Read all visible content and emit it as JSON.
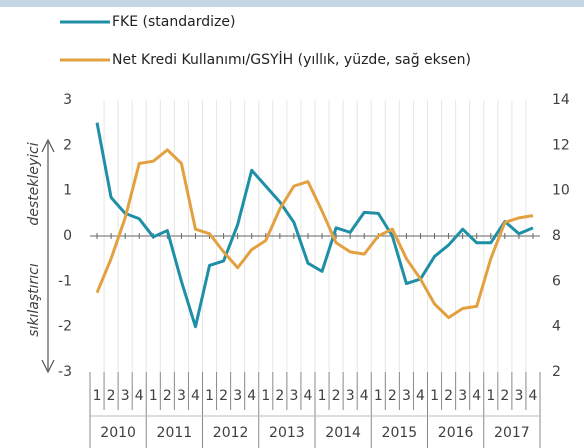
{
  "chart_data": {
    "type": "line",
    "annotations": [
      "destekleyici",
      "sıkılaştırıcı"
    ],
    "categories": [
      "1",
      "2",
      "3",
      "4",
      "1",
      "2",
      "3",
      "4",
      "1",
      "2",
      "3",
      "4",
      "1",
      "2",
      "3",
      "4",
      "1",
      "2",
      "3",
      "4",
      "1",
      "2",
      "3",
      "4",
      "1",
      "2",
      "3",
      "4",
      "1",
      "2",
      "3",
      "4"
    ],
    "groups": [
      "2010",
      "2011",
      "2012",
      "2013",
      "2014",
      "2015",
      "2016",
      "2017"
    ],
    "series": [
      {
        "name": "FKE (standardize)",
        "color": "#1e8fa6",
        "values": [
          2.5,
          0.85,
          0.5,
          0.38,
          -0.02,
          0.12,
          -1.0,
          -2.0,
          -0.65,
          -0.55,
          0.25,
          1.45,
          1.1,
          0.75,
          0.3,
          -0.6,
          -0.78,
          0.18,
          0.08,
          0.52,
          0.5,
          0.0,
          -1.05,
          -0.95,
          -0.45,
          -0.2,
          0.15,
          -0.15,
          -0.15,
          0.32,
          0.05,
          0.18
        ]
      },
      {
        "name": "Net Kredi Kullanımı/GSYİH (yıllık, yüzde, sağ eksen)",
        "color": "#e3a040",
        "axis": "y2",
        "values": [
          5.5,
          7.0,
          8.8,
          11.2,
          11.3,
          11.8,
          11.2,
          8.3,
          8.1,
          7.3,
          6.6,
          7.4,
          7.8,
          9.2,
          10.2,
          10.4,
          9.1,
          7.7,
          7.3,
          7.2,
          8.0,
          8.3,
          7.0,
          6.1,
          5.0,
          4.4,
          4.8,
          4.9,
          7.0,
          8.6,
          8.8,
          8.9
        ]
      }
    ],
    "ylim": [
      -3,
      3
    ],
    "yticks": [
      -3,
      -2,
      -1,
      0,
      1,
      2,
      3
    ],
    "y2lim": [
      2,
      14
    ],
    "y2ticks": [
      2,
      4,
      6,
      8,
      10,
      12,
      14
    ]
  }
}
